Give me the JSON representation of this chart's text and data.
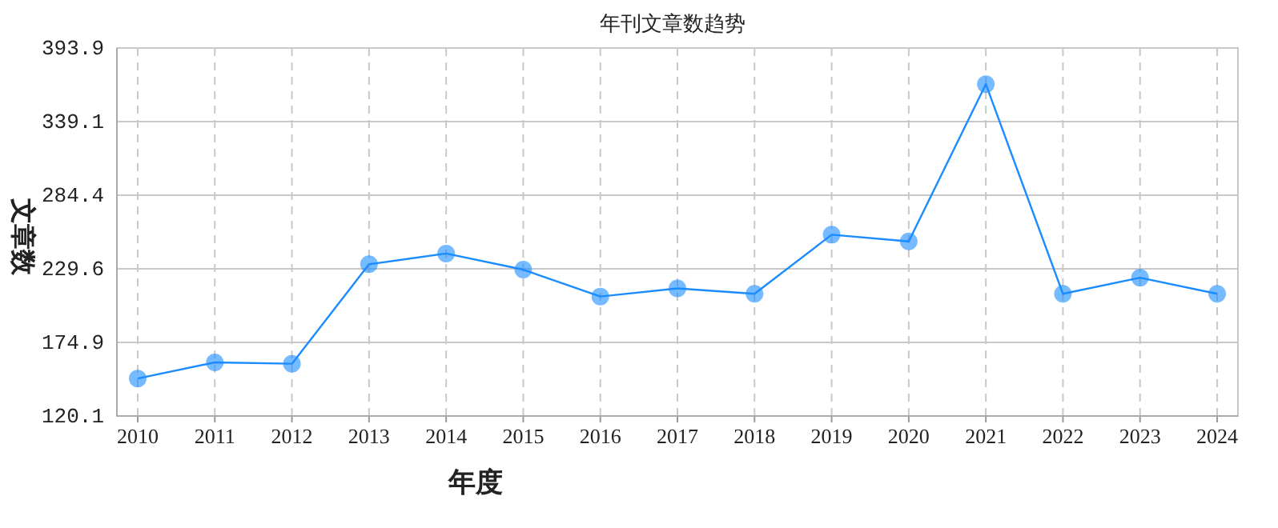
{
  "chart_data": {
    "type": "line",
    "title": "年刊文章数趋势",
    "xlabel": "年度",
    "ylabel": "文章数",
    "categories": [
      "2010",
      "2011",
      "2012",
      "2013",
      "2014",
      "2015",
      "2016",
      "2017",
      "2018",
      "2019",
      "2020",
      "2021",
      "2022",
      "2023",
      "2024"
    ],
    "series": [
      {
        "color": "#1a8cff",
        "values": [
          148,
          160,
          159,
          233,
          241,
          229,
          209,
          215,
          211,
          255,
          250,
          367,
          211,
          223,
          211
        ]
      }
    ],
    "ylim": [
      120.1,
      393.9
    ],
    "yticks": [
      120.1,
      174.9,
      229.6,
      284.4,
      339.1,
      393.9
    ],
    "grid": true,
    "marker": "circle",
    "line_style": "solid"
  }
}
